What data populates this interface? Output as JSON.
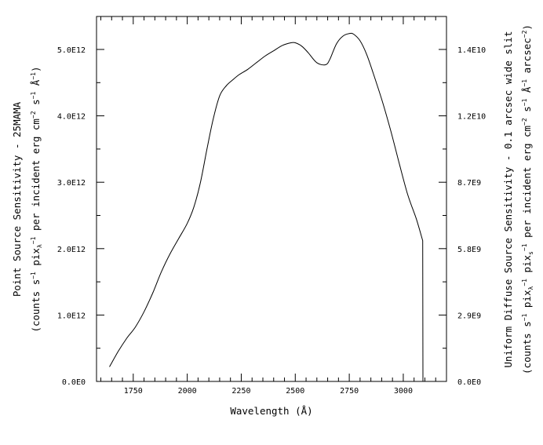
{
  "chart_data": {
    "type": "line",
    "xlabel": "Wavelength (Å)",
    "ylabel_left_line1": "Point Source Sensitivity - 25MAMA",
    "ylabel_left_line2": "(counts s^-1 pix_λ^-1 per incident erg cm^-2 s^-1 Å^-1)",
    "ylabel_right_line1": "Uniform Diffuse Source Sensitivity - 0.1 arcsec wide slit",
    "ylabel_right_line2": "(counts s^-1 pix_λ^-1 pix_s^-1 per incident erg cm^-2 s^-1 Å^-1 arcsec^-2)",
    "xlim": [
      1580,
      3200
    ],
    "ylim_left": [
      0,
      5500000000000.0
    ],
    "x_ticks": [
      1750,
      2000,
      2250,
      2500,
      2750,
      3000
    ],
    "x_tick_labels": [
      "1750",
      "2000",
      "2250",
      "2500",
      "2750",
      "3000"
    ],
    "y_left_ticks": [
      0,
      1000000000000.0,
      2000000000000.0,
      3000000000000.0,
      4000000000000.0,
      5000000000000.0
    ],
    "y_left_tick_labels": [
      "0.0E0",
      "1.0E12",
      "2.0E12",
      "3.0E12",
      "4.0E12",
      "5.0E12"
    ],
    "y_right_tick_labels": [
      "0.0E0",
      "2.9E9",
      "5.8E9",
      "8.7E9",
      "1.2E10",
      "1.4E10"
    ],
    "grid": false,
    "series": [
      {
        "x": [
          1640,
          1680,
          1720,
          1760,
          1800,
          1840,
          1880,
          1920,
          1960,
          2000,
          2030,
          2060,
          2090,
          2120,
          2150,
          2180,
          2210,
          2240,
          2280,
          2320,
          2360,
          2400,
          2440,
          2480,
          2500,
          2530,
          2560,
          2600,
          2640,
          2660,
          2690,
          2720,
          2750,
          2770,
          2800,
          2830,
          2860,
          2900,
          2940,
          2980,
          3020,
          3060,
          3090,
          3091
        ],
        "y": [
          220000000000.0,
          450000000000.0,
          650000000000.0,
          820000000000.0,
          1050000000000.0,
          1330000000000.0,
          1650000000000.0,
          1920000000000.0,
          2150000000000.0,
          2380000000000.0,
          2620000000000.0,
          2980000000000.0,
          3480000000000.0,
          3950000000000.0,
          4300000000000.0,
          4450000000000.0,
          4540000000000.0,
          4620000000000.0,
          4700000000000.0,
          4800000000000.0,
          4900000000000.0,
          4980000000000.0,
          5060000000000.0,
          5100000000000.0,
          5100000000000.0,
          5050000000000.0,
          4950000000000.0,
          4800000000000.0,
          4770000000000.0,
          4850000000000.0,
          5080000000000.0,
          5200000000000.0,
          5240000000000.0,
          5230000000000.0,
          5130000000000.0,
          4930000000000.0,
          4650000000000.0,
          4250000000000.0,
          3800000000000.0,
          3300000000000.0,
          2820000000000.0,
          2450000000000.0,
          2120000000000.0,
          0
        ]
      }
    ]
  }
}
